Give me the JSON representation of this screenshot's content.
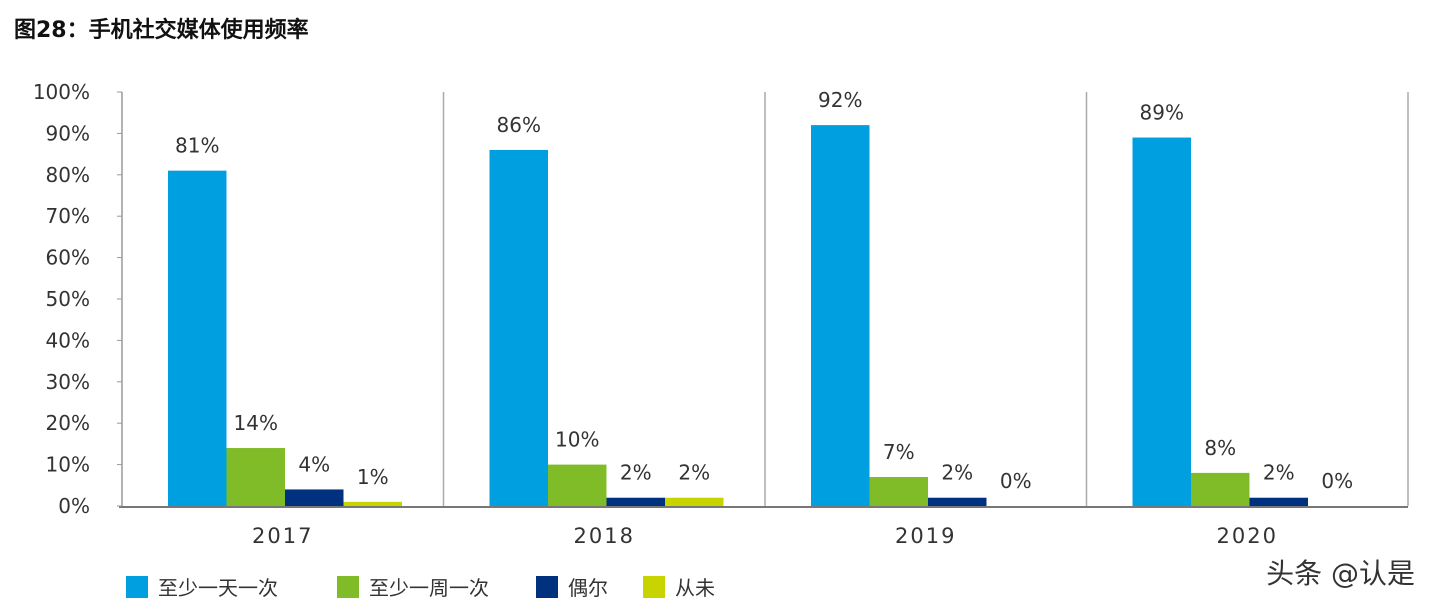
{
  "title": "图28：手机社交媒体使用频率",
  "watermark": "头条 @认是",
  "chart_data": {
    "type": "bar",
    "title": "图28：手机社交媒体使用频率",
    "categories": [
      "2017",
      "2018",
      "2019",
      "2020"
    ],
    "series": [
      {
        "name": "至少一天一次",
        "color": "#00A0E0",
        "values": [
          81,
          86,
          92,
          89
        ]
      },
      {
        "name": "至少一周一次",
        "color": "#80BC28",
        "values": [
          14,
          10,
          7,
          8
        ]
      },
      {
        "name": "偶尔",
        "color": "#00317F",
        "values": [
          4,
          2,
          2,
          2
        ]
      },
      {
        "name": "从未",
        "color": "#C8D400",
        "values": [
          1,
          2,
          0,
          0
        ]
      }
    ],
    "ylim": [
      0,
      100
    ],
    "yticks": [
      "0%",
      "10%",
      "20%",
      "30%",
      "40%",
      "50%",
      "60%",
      "70%",
      "80%",
      "90%",
      "100%"
    ],
    "value_suffix": "%",
    "grid": false,
    "legend_position": "bottom"
  }
}
